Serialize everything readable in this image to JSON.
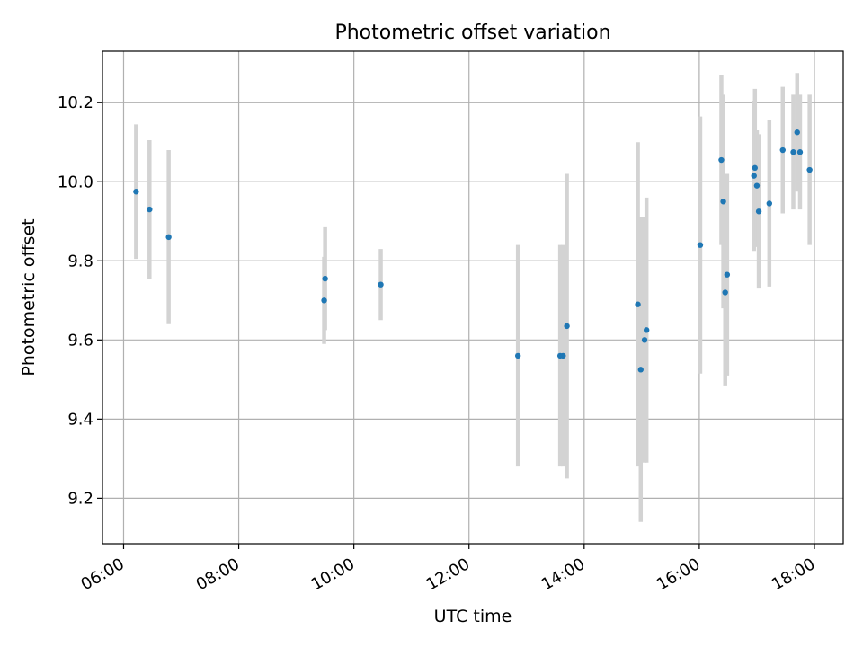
{
  "chart_data": {
    "type": "scatter",
    "title": "Photometric offset variation",
    "xlabel": "UTC time",
    "ylabel": "Photometric offset",
    "x_ticks": [
      "06:00",
      "08:00",
      "10:00",
      "12:00",
      "14:00",
      "16:00",
      "18:00"
    ],
    "y_ticks": [
      "9.2",
      "9.4",
      "9.6",
      "9.8",
      "10.0",
      "10.2"
    ],
    "xlim": [
      "05:38",
      "18:30"
    ],
    "ylim": [
      9.085,
      10.33
    ],
    "grid": true,
    "legend": false,
    "points": [
      {
        "x": "06:13",
        "y": 9.975,
        "err": 0.17
      },
      {
        "x": "06:27",
        "y": 9.93,
        "err": 0.175
      },
      {
        "x": "06:47",
        "y": 9.86,
        "err": 0.22
      },
      {
        "x": "09:30",
        "y": 9.755,
        "err": 0.13
      },
      {
        "x": "09:29",
        "y": 9.7,
        "err": 0.11
      },
      {
        "x": "10:28",
        "y": 9.74,
        "err": 0.09
      },
      {
        "x": "12:51",
        "y": 9.56,
        "err": 0.28
      },
      {
        "x": "13:35",
        "y": 9.56,
        "err": 0.28
      },
      {
        "x": "13:38",
        "y": 9.56,
        "err": 0.28
      },
      {
        "x": "13:42",
        "y": 9.635,
        "err": 0.385
      },
      {
        "x": "14:56",
        "y": 9.69,
        "err": 0.41
      },
      {
        "x": "14:59",
        "y": 9.525,
        "err": 0.385
      },
      {
        "x": "15:03",
        "y": 9.6,
        "err": 0.31
      },
      {
        "x": "15:05",
        "y": 9.625,
        "err": 0.335
      },
      {
        "x": "16:01",
        "y": 9.84,
        "err": 0.325
      },
      {
        "x": "16:23",
        "y": 10.055,
        "err": 0.215
      },
      {
        "x": "16:25",
        "y": 9.95,
        "err": 0.27
      },
      {
        "x": "16:27",
        "y": 9.72,
        "err": 0.235
      },
      {
        "x": "16:29",
        "y": 9.765,
        "err": 0.255
      },
      {
        "x": "16:57",
        "y": 10.015,
        "err": 0.19
      },
      {
        "x": "16:58",
        "y": 10.035,
        "err": 0.2
      },
      {
        "x": "17:00",
        "y": 9.99,
        "err": 0.14
      },
      {
        "x": "17:02",
        "y": 9.925,
        "err": 0.195
      },
      {
        "x": "17:13",
        "y": 9.945,
        "err": 0.21
      },
      {
        "x": "17:27",
        "y": 10.08,
        "err": 0.16
      },
      {
        "x": "17:38",
        "y": 10.075,
        "err": 0.145
      },
      {
        "x": "17:42",
        "y": 10.125,
        "err": 0.15
      },
      {
        "x": "17:45",
        "y": 10.075,
        "err": 0.145
      },
      {
        "x": "17:55",
        "y": 10.03,
        "err": 0.19
      }
    ],
    "colors": {
      "point": "#1f77b4",
      "errorbar": "#d3d3d3",
      "grid": "#b0b0b0",
      "axis": "#000000"
    }
  }
}
